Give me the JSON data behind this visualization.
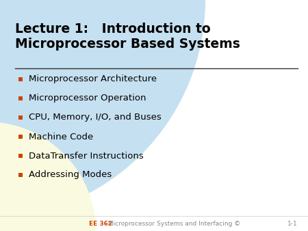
{
  "title_line1": "Lecture 1:   Introduction to",
  "title_line2": "Microprocessor Based Systems",
  "bullet_items": [
    "Microprocessor Architecture",
    "Microprocessor Operation",
    "CPU, Memory, I/O, and Buses",
    "Machine Code",
    "DataTransfer Instructions",
    "Addressing Modes"
  ],
  "footer_left_bold": "EE 362",
  "footer_left_rest": " Microprocessor Systems and Interfacing ©",
  "footer_right": "1-1",
  "bg_color": "#ffffff",
  "arc_color_blue": "#c5e0f0",
  "arc_color_yellow": "#fafae0",
  "title_color": "#000000",
  "bullet_color": "#000000",
  "bullet_dot_color": "#cc4400",
  "separator_color": "#333333",
  "footer_bold_color": "#cc4400",
  "footer_color": "#888888",
  "title_fontsize": 13.5,
  "bullet_fontsize": 9.5,
  "footer_fontsize": 6.5
}
